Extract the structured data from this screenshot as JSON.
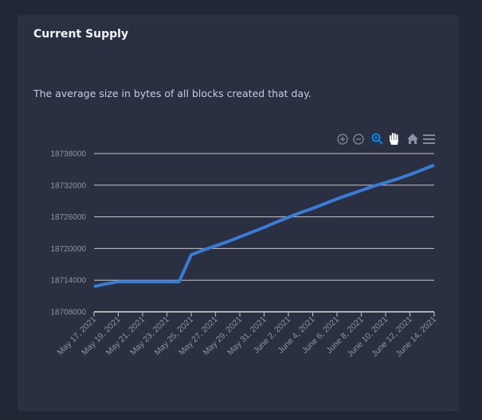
{
  "card": {
    "title": "Current Supply",
    "description": "The average size in bytes of all blocks created that day."
  },
  "toolbar": {
    "icons": [
      "zoom-in-icon",
      "zoom-out-icon",
      "selection-zoom-icon",
      "pan-hand-icon",
      "reset-home-icon",
      "menu-icon"
    ],
    "active": "selection-zoom-icon"
  },
  "colors": {
    "line": "#3a7bd5",
    "active_icon": "#008ffb",
    "grid": "#c8c8c8"
  },
  "chart_data": {
    "type": "line",
    "title": "",
    "xlabel": "",
    "ylabel": "",
    "ylim": [
      18708000,
      18738000
    ],
    "yticks": [
      "18738000",
      "18732000",
      "18726000",
      "18720000",
      "18714000",
      "18708000"
    ],
    "xticks": [
      "May 17, 2021",
      "May 19, 2021",
      "May 21, 2021",
      "May 23, 2021",
      "May 25, 2021",
      "May 27, 2021",
      "May 29, 2021",
      "May 31, 2021",
      "June 2, 2021",
      "June 4, 2021",
      "June 6, 2021",
      "June 8, 2021",
      "June 10, 2021",
      "June 12, 2021",
      "June 14, 2021"
    ],
    "grid": true,
    "series": [
      {
        "x": [
          "2021-05-17",
          "2021-05-18",
          "2021-05-19",
          "2021-05-20",
          "2021-05-21",
          "2021-05-22",
          "2021-05-23",
          "2021-05-24",
          "2021-05-25",
          "2021-05-26",
          "2021-05-27",
          "2021-05-28",
          "2021-05-29",
          "2021-05-30",
          "2021-05-31",
          "2021-06-01",
          "2021-06-02",
          "2021-06-03",
          "2021-06-04",
          "2021-06-05",
          "2021-06-06",
          "2021-06-07",
          "2021-06-08",
          "2021-06-09",
          "2021-06-10",
          "2021-06-11",
          "2021-06-12",
          "2021-06-13",
          "2021-06-14"
        ],
        "values": [
          18712800,
          18713300,
          18713700,
          18713700,
          18713700,
          18713700,
          18713700,
          18713700,
          18718800,
          18719700,
          18720500,
          18721300,
          18722200,
          18723100,
          18724000,
          18725000,
          18725900,
          18726800,
          18727600,
          18728500,
          18729400,
          18730200,
          18731000,
          18731800,
          18732500,
          18733200,
          18734000,
          18734900,
          18735800
        ]
      }
    ]
  }
}
